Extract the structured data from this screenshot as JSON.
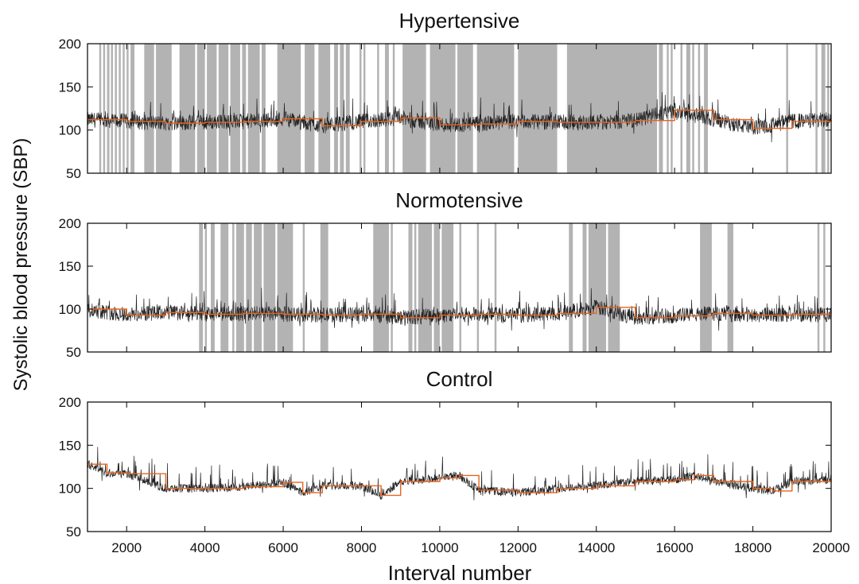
{
  "chart_data": [
    {
      "type": "line",
      "title": "Hypertensive",
      "xlabel": "Interval number",
      "ylabel": "Systolic blood pressure (SBP)",
      "xlim": [
        1000,
        20000
      ],
      "ylim": [
        50,
        200
      ],
      "yticks": [
        50,
        100,
        150,
        200
      ],
      "xticks": [
        2000,
        4000,
        6000,
        8000,
        10000,
        12000,
        14000,
        16000,
        18000,
        20000
      ],
      "grid": false,
      "colors": {
        "raw": "#222222",
        "segment_mean": "#e8641e",
        "shaded": "#b3b3b3"
      },
      "series": [
        {
          "role": "raw",
          "x": [
            1000,
            2000,
            3000,
            4000,
            5000,
            6000,
            7000,
            8000,
            9000,
            10000,
            11000,
            12000,
            13000,
            14000,
            15000,
            16000,
            17000,
            18000,
            19000,
            20000
          ],
          "values": [
            112,
            110,
            108,
            109,
            110,
            113,
            105,
            110,
            114,
            106,
            107,
            110,
            109,
            109,
            111,
            123,
            112,
            102,
            110,
            112
          ]
        },
        {
          "role": "segment_mean",
          "x": [
            1000,
            2000,
            3000,
            4000,
            5000,
            6000,
            7000,
            8000,
            9000,
            10000,
            11000,
            12000,
            13000,
            14000,
            15000,
            16000,
            17000,
            18000,
            19000,
            20000
          ],
          "values": [
            112,
            110,
            108,
            109,
            110,
            113,
            105,
            110,
            114,
            106,
            107,
            110,
            109,
            109,
            111,
            123,
            112,
            102,
            110,
            112
          ]
        }
      ],
      "shaded_intervals": [
        [
          1300,
          1350
        ],
        [
          1400,
          1450
        ],
        [
          1500,
          1560
        ],
        [
          1600,
          1650
        ],
        [
          1700,
          1750
        ],
        [
          1800,
          1850
        ],
        [
          1900,
          1950
        ],
        [
          2000,
          2050
        ],
        [
          2100,
          2200
        ],
        [
          2450,
          2700
        ],
        [
          2750,
          3150
        ],
        [
          3350,
          3750
        ],
        [
          3800,
          4000
        ],
        [
          4050,
          4300
        ],
        [
          4350,
          4600
        ],
        [
          4650,
          4900
        ],
        [
          4950,
          5050
        ],
        [
          5100,
          5400
        ],
        [
          5450,
          5550
        ],
        [
          5850,
          6450
        ],
        [
          6550,
          6800
        ],
        [
          6900,
          7200
        ],
        [
          7300,
          7400
        ],
        [
          7450,
          7550
        ],
        [
          7600,
          7700
        ],
        [
          7950,
          8000
        ],
        [
          8050,
          8100
        ],
        [
          8400,
          8450
        ],
        [
          8600,
          8700
        ],
        [
          8800,
          8850
        ],
        [
          9050,
          9650
        ],
        [
          9750,
          10400
        ],
        [
          10450,
          10850
        ],
        [
          10950,
          11900
        ],
        [
          12000,
          13000
        ],
        [
          13250,
          15550
        ],
        [
          15600,
          15700
        ],
        [
          15800,
          15850
        ],
        [
          15900,
          15950
        ],
        [
          16150,
          16200
        ],
        [
          16300,
          16400
        ],
        [
          16450,
          16500
        ],
        [
          16600,
          16650
        ],
        [
          16750,
          16850
        ],
        [
          18850,
          18900
        ],
        [
          19600,
          19650
        ],
        [
          19750,
          19850
        ],
        [
          19900,
          19950
        ]
      ]
    },
    {
      "type": "line",
      "title": "Normotensive",
      "xlim": [
        1000,
        20000
      ],
      "ylim": [
        50,
        200
      ],
      "yticks": [
        50,
        100,
        150,
        200
      ],
      "grid": false,
      "colors": {
        "raw": "#222222",
        "segment_mean": "#e8641e",
        "shaded": "#b3b3b3"
      },
      "series": [
        {
          "role": "raw",
          "x": [
            1000,
            2000,
            3000,
            4000,
            5000,
            6000,
            7000,
            8000,
            9000,
            10000,
            11000,
            12000,
            13000,
            14000,
            15000,
            16000,
            17000,
            18000,
            19000,
            20000
          ],
          "values": [
            100,
            93,
            96,
            94,
            95,
            94,
            93,
            94,
            90,
            93,
            94,
            93,
            95,
            102,
            90,
            92,
            95,
            93,
            94,
            94
          ]
        },
        {
          "role": "segment_mean",
          "x": [
            1000,
            2000,
            3000,
            4000,
            5000,
            6000,
            7000,
            8000,
            9000,
            10000,
            11000,
            12000,
            13000,
            14000,
            15000,
            16000,
            17000,
            18000,
            19000,
            20000
          ],
          "values": [
            100,
            93,
            96,
            94,
            95,
            94,
            93,
            94,
            90,
            93,
            94,
            93,
            95,
            102,
            90,
            92,
            95,
            93,
            94,
            94
          ]
        }
      ],
      "shaded_intervals": [
        [
          3850,
          3950
        ],
        [
          4000,
          4050
        ],
        [
          4150,
          4250
        ],
        [
          4400,
          4600
        ],
        [
          4700,
          4750
        ],
        [
          4800,
          5000
        ],
        [
          5050,
          5200
        ],
        [
          5250,
          5450
        ],
        [
          5500,
          5800
        ],
        [
          5850,
          6250
        ],
        [
          6500,
          6550
        ],
        [
          6950,
          7150
        ],
        [
          8300,
          8700
        ],
        [
          8750,
          8800
        ],
        [
          9200,
          9300
        ],
        [
          9350,
          9400
        ],
        [
          9450,
          9800
        ],
        [
          9850,
          10000
        ],
        [
          10050,
          10350
        ],
        [
          10500,
          10550
        ],
        [
          10950,
          11000
        ],
        [
          11400,
          11450
        ],
        [
          13300,
          13400
        ],
        [
          13650,
          13750
        ],
        [
          13800,
          14250
        ],
        [
          14300,
          14600
        ],
        [
          16650,
          16950
        ],
        [
          17350,
          17500
        ],
        [
          19650,
          19700
        ],
        [
          19800,
          19850
        ]
      ]
    },
    {
      "type": "line",
      "title": "Control",
      "xlim": [
        1000,
        20000
      ],
      "ylim": [
        50,
        200
      ],
      "yticks": [
        50,
        100,
        150,
        200
      ],
      "grid": false,
      "colors": {
        "raw": "#222222",
        "segment_mean": "#e8641e"
      },
      "series": [
        {
          "role": "raw",
          "x": [
            1000,
            1500,
            2000,
            3000,
            4000,
            5000,
            6000,
            6500,
            7000,
            8000,
            8500,
            9000,
            10000,
            10500,
            11000,
            12000,
            13000,
            14000,
            15000,
            16000,
            16500,
            17000,
            18000,
            18500,
            19000,
            20000
          ],
          "values": [
            128,
            118,
            117,
            100,
            100,
            102,
            107,
            95,
            103,
            103,
            92,
            108,
            112,
            115,
            98,
            95,
            100,
            103,
            108,
            110,
            115,
            108,
            100,
            97,
            108,
            110
          ]
        },
        {
          "role": "segment_mean",
          "x": [
            1000,
            1500,
            2000,
            3000,
            4000,
            5000,
            6000,
            6500,
            7000,
            8000,
            8500,
            9000,
            10000,
            10500,
            11000,
            12000,
            13000,
            14000,
            15000,
            16000,
            16500,
            17000,
            18000,
            18500,
            19000,
            20000
          ],
          "values": [
            128,
            118,
            117,
            100,
            100,
            102,
            107,
            95,
            103,
            103,
            92,
            108,
            112,
            115,
            98,
            95,
            100,
            103,
            108,
            110,
            115,
            108,
            100,
            97,
            108,
            110
          ]
        }
      ],
      "shaded_intervals": []
    }
  ]
}
